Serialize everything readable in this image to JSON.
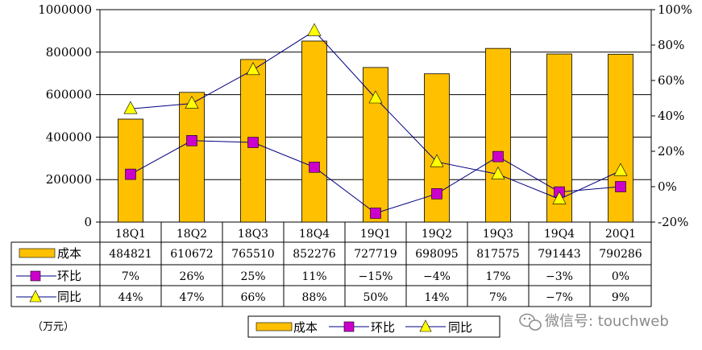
{
  "chart_data": {
    "type": "bar",
    "categories": [
      "18Q1",
      "18Q2",
      "18Q3",
      "18Q4",
      "19Q1",
      "19Q2",
      "19Q3",
      "19Q4",
      "20Q1"
    ],
    "series": [
      {
        "name": "成本",
        "type": "bar",
        "axis": "left",
        "values": [
          484821,
          610672,
          765510,
          852276,
          727719,
          698095,
          817575,
          791443,
          790286
        ],
        "labels": [
          "484821",
          "610672",
          "765510",
          "852276",
          "727719",
          "698095",
          "817575",
          "791443",
          "790286"
        ],
        "color": "#ffc000"
      },
      {
        "name": "环比",
        "type": "line",
        "axis": "right",
        "values": [
          7,
          26,
          25,
          11,
          -15,
          -4,
          17,
          -3,
          0
        ],
        "labels": [
          "7%",
          "26%",
          "25%",
          "11%",
          "−15%",
          "−4%",
          "17%",
          "−3%",
          "0%"
        ],
        "color": "#cc00cc",
        "marker": "square"
      },
      {
        "name": "同比",
        "type": "line",
        "axis": "right",
        "values": [
          44,
          47,
          66,
          88,
          50,
          14,
          7,
          -7,
          9
        ],
        "labels": [
          "44%",
          "47%",
          "66%",
          "88%",
          "50%",
          "14%",
          "7%",
          "−7%",
          "9%"
        ],
        "color": "#ffff00",
        "marker": "triangle"
      }
    ],
    "ylim_left": [
      0,
      1000000
    ],
    "yticks_left": [
      "0",
      "200000",
      "400000",
      "600000",
      "800000",
      "1000000"
    ],
    "ylim_right": [
      -20,
      100
    ],
    "yticks_right": [
      "-20%",
      "0%",
      "20%",
      "40%",
      "60%",
      "80%",
      "100%"
    ],
    "grid": true,
    "unit_label": "（万元）",
    "legend": [
      "成本",
      "环比",
      "同比"
    ],
    "legend_position": "bottom"
  },
  "watermark": "微信号: touchweb",
  "icon": "wechat-icon"
}
